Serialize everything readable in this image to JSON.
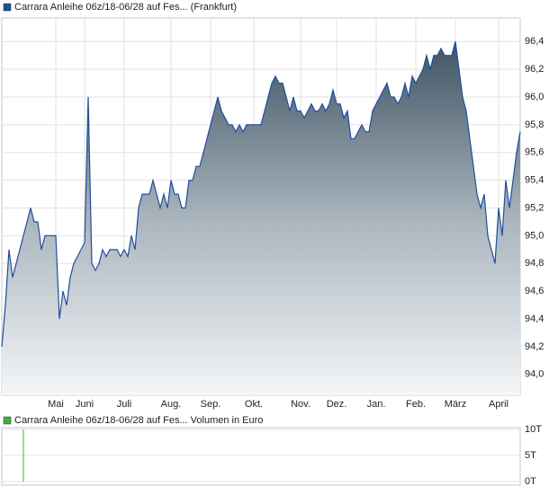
{
  "chart_data": [
    {
      "type": "area",
      "grid": true,
      "xlim": [
        0,
        144
      ],
      "ylim": [
        93.85,
        96.57
      ],
      "xticks": [
        {
          "value": 15,
          "label": "Mai"
        },
        {
          "value": 23,
          "label": "Juni"
        },
        {
          "value": 34,
          "label": "Juli"
        },
        {
          "value": 47,
          "label": "Aug."
        },
        {
          "value": 58,
          "label": "Sep."
        },
        {
          "value": 70,
          "label": "Okt."
        },
        {
          "value": 83,
          "label": "Nov."
        },
        {
          "value": 93,
          "label": "Dez."
        },
        {
          "value": 104,
          "label": "Jan."
        },
        {
          "value": 115,
          "label": "Feb."
        },
        {
          "value": 126,
          "label": "März"
        },
        {
          "value": 138,
          "label": "April"
        }
      ],
      "yticks": [
        {
          "value": 94.0,
          "label": "94,0"
        },
        {
          "value": 94.2,
          "label": "94,2"
        },
        {
          "value": 94.4,
          "label": "94,4"
        },
        {
          "value": 94.6,
          "label": "94,6"
        },
        {
          "value": 94.8,
          "label": "94,8"
        },
        {
          "value": 95.0,
          "label": "95,0"
        },
        {
          "value": 95.2,
          "label": "95,2"
        },
        {
          "value": 95.4,
          "label": "95,4"
        },
        {
          "value": 95.6,
          "label": "95,6"
        },
        {
          "value": 95.8,
          "label": "95,8"
        },
        {
          "value": 96.0,
          "label": "96,0"
        },
        {
          "value": 96.2,
          "label": "96,2"
        },
        {
          "value": 96.4,
          "label": "96,4"
        }
      ],
      "series": [
        {
          "name": "Carrara Anleihe 06z/18-06/28 auf Fes... (Frankfurt)",
          "color": "#1f4e9c",
          "values": [
            94.2,
            94.5,
            94.9,
            94.7,
            94.8,
            94.9,
            95.0,
            95.1,
            95.2,
            95.1,
            95.1,
            94.9,
            95.0,
            95.0,
            95.0,
            95.0,
            94.4,
            94.6,
            94.5,
            94.7,
            94.8,
            94.85,
            94.9,
            94.95,
            96.0,
            94.8,
            94.75,
            94.8,
            94.9,
            94.85,
            94.9,
            94.9,
            94.9,
            94.85,
            94.9,
            94.85,
            95.0,
            94.9,
            95.2,
            95.3,
            95.3,
            95.3,
            95.4,
            95.3,
            95.2,
            95.3,
            95.2,
            95.4,
            95.3,
            95.3,
            95.2,
            95.2,
            95.4,
            95.4,
            95.5,
            95.5,
            95.6,
            95.7,
            95.8,
            95.9,
            96.0,
            95.9,
            95.85,
            95.8,
            95.8,
            95.75,
            95.8,
            95.75,
            95.8,
            95.8,
            95.8,
            95.8,
            95.8,
            95.9,
            96.0,
            96.1,
            96.15,
            96.1,
            96.1,
            96.0,
            95.9,
            96.0,
            95.9,
            95.9,
            95.85,
            95.9,
            95.95,
            95.9,
            95.9,
            95.95,
            95.9,
            95.95,
            96.05,
            95.95,
            95.95,
            95.85,
            95.9,
            95.7,
            95.7,
            95.75,
            95.8,
            95.75,
            95.75,
            95.9,
            95.95,
            96.0,
            96.05,
            96.1,
            96.0,
            96.0,
            95.95,
            96.0,
            96.1,
            96.0,
            96.15,
            96.1,
            96.15,
            96.2,
            96.3,
            96.2,
            96.3,
            96.3,
            96.35,
            96.3,
            96.3,
            96.3,
            96.4,
            96.2,
            96.0,
            95.9,
            95.7,
            95.5,
            95.3,
            95.2,
            95.3,
            95.0,
            94.9,
            94.8,
            95.2,
            95.0,
            95.4,
            95.2,
            95.4,
            95.6,
            95.75
          ]
        }
      ]
    },
    {
      "type": "bar",
      "grid": true,
      "xlim": [
        0,
        144
      ],
      "ylim": [
        0,
        10000
      ],
      "yticks": [
        {
          "value": 0,
          "label": "0T"
        },
        {
          "value": 5000,
          "label": "5T"
        },
        {
          "value": 10000,
          "label": "10T"
        }
      ],
      "series": [
        {
          "name": "Carrara Anleihe 06z/18-06/28 auf Fes... Volumen in Euro",
          "color": "#3cb043",
          "x": [
            6
          ],
          "values": [
            10000
          ]
        }
      ]
    }
  ]
}
